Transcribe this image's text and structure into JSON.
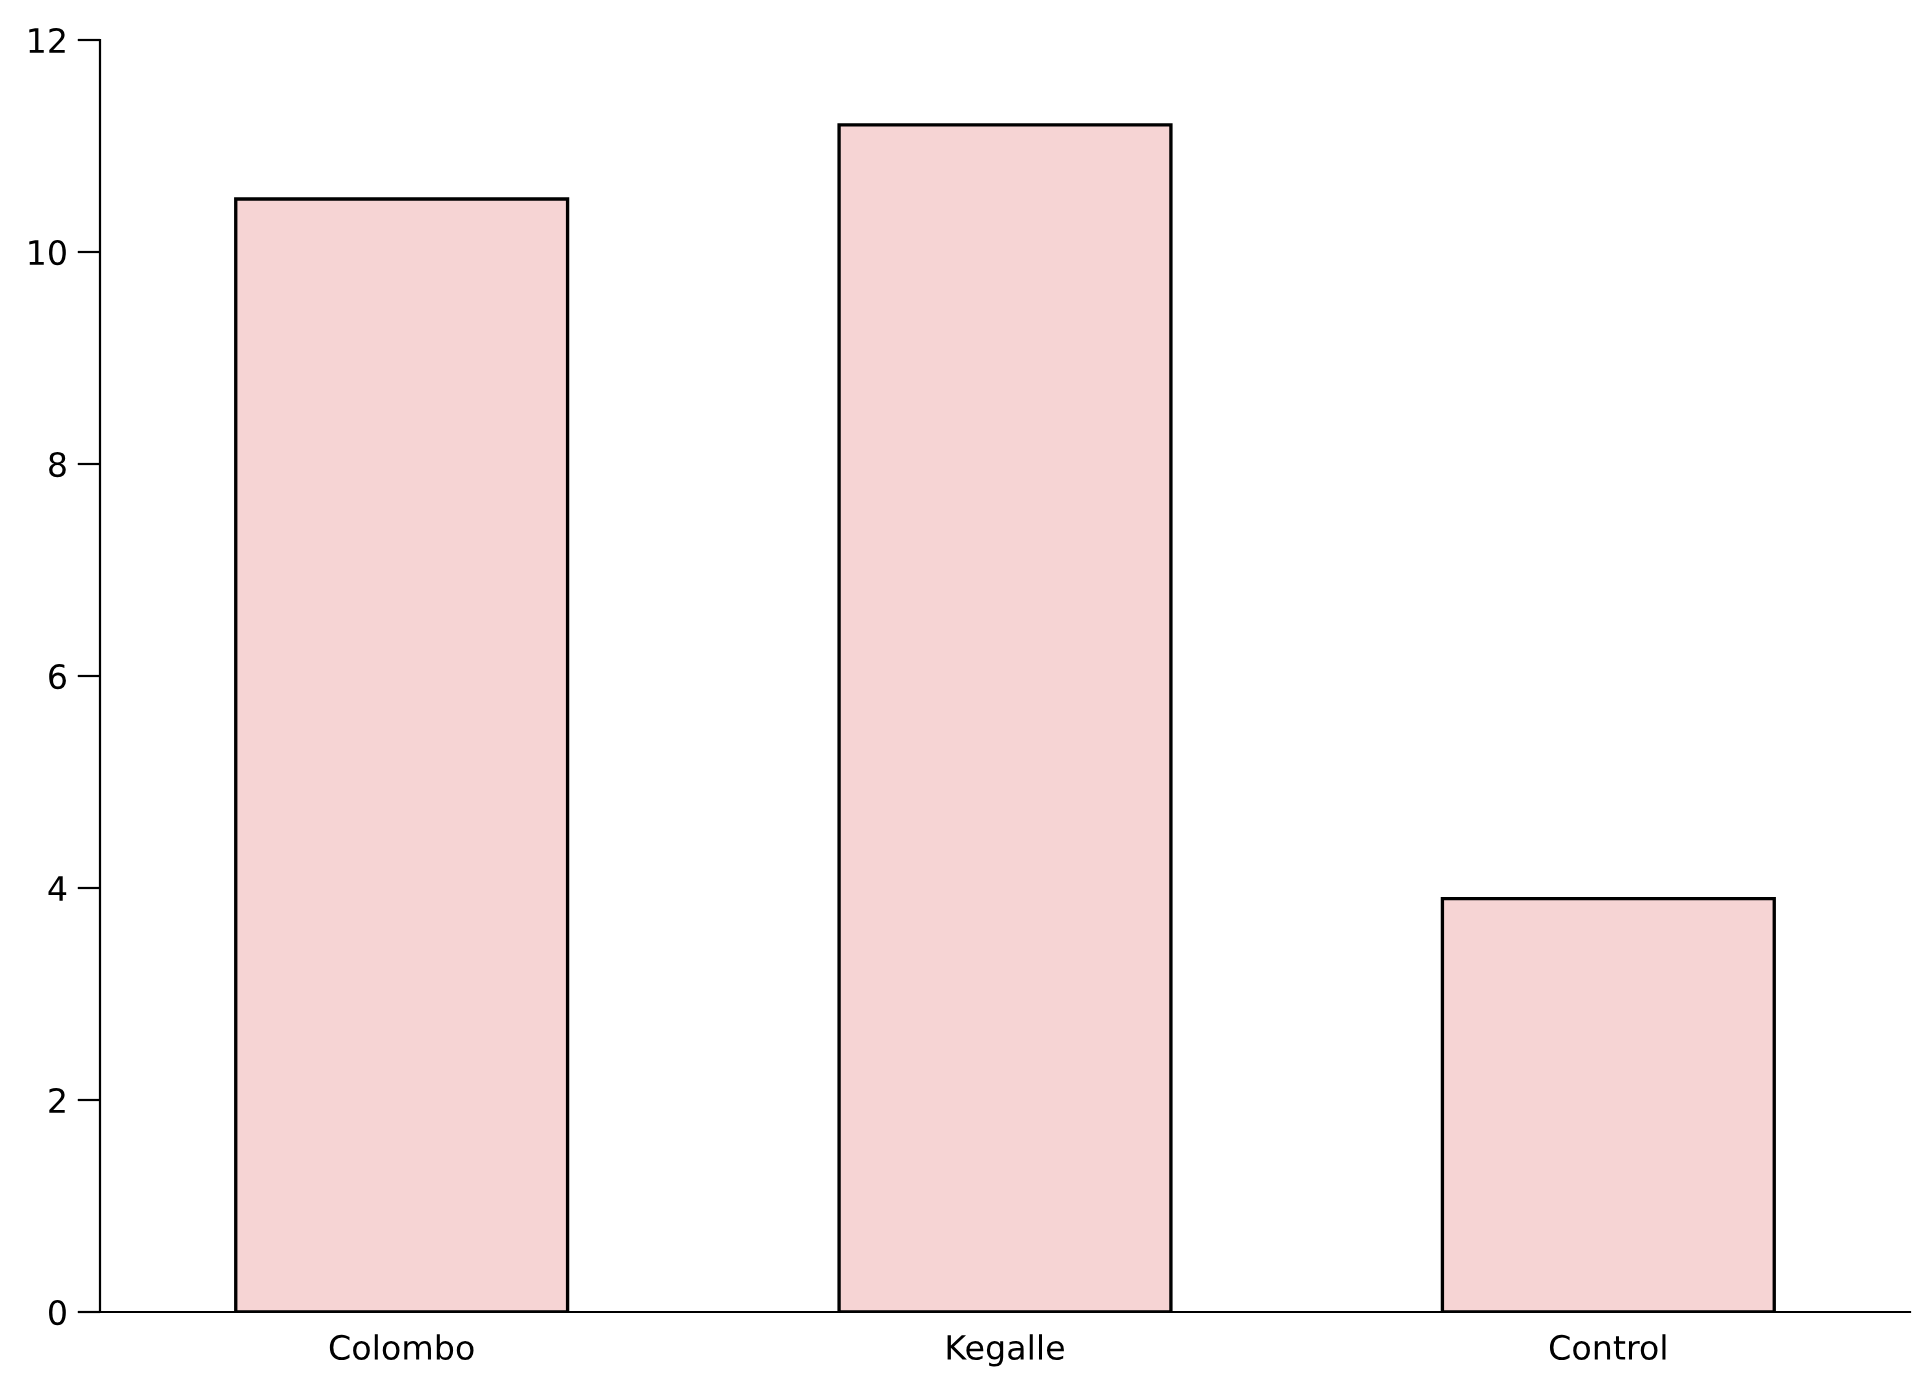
{
  "chart_data": {
    "type": "bar",
    "categories": [
      "Colombo",
      "Kegalle",
      "Control"
    ],
    "values": [
      10.5,
      11.2,
      3.9
    ],
    "color": "#f6d4d4",
    "ylim": [
      0,
      12
    ],
    "yticks": [
      0,
      2,
      4,
      6,
      8,
      10,
      12
    ],
    "grid": false,
    "legend": false
  }
}
